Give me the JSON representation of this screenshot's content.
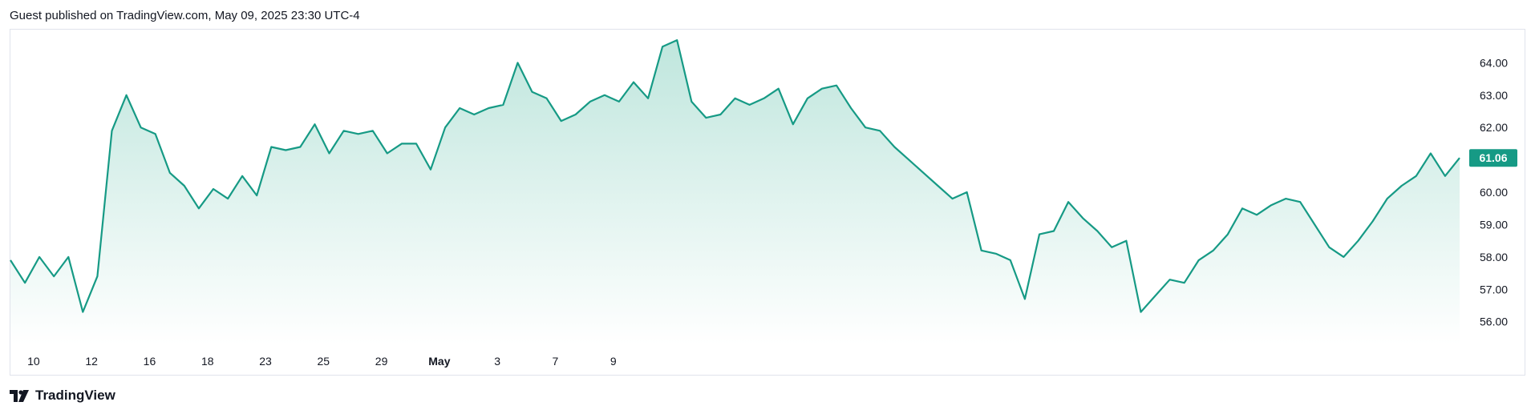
{
  "header": {
    "published_text": "Guest published on TradingView.com, May 09, 2025 23:30 UTC-4"
  },
  "footer": {
    "brand": "TradingView",
    "logo_icon": "tradingview-logo-icon"
  },
  "colors": {
    "line": "#169a85",
    "fill_top": "#bfe6dd",
    "fill_bottom": "#ffffff",
    "badge_bg": "#169a85",
    "badge_text": "#ffffff",
    "axis_text": "#131722",
    "border": "#e0e3eb"
  },
  "chart_data": {
    "type": "area",
    "title": "",
    "xlabel": "",
    "ylabel": "",
    "ylim": [
      55.3,
      64.9
    ],
    "y_ticks": [
      56,
      57,
      58,
      59,
      60,
      61,
      62,
      63,
      64
    ],
    "y_tick_labels": [
      "56.00",
      "57.00",
      "58.00",
      "59.00",
      "60.00",
      "61.00",
      "62.00",
      "63.00",
      "64.00"
    ],
    "x_tick_labels": [
      "10",
      "12",
      "16",
      "18",
      "23",
      "25",
      "29",
      "May",
      "3",
      "7",
      "9"
    ],
    "x_tick_index": [
      1.6,
      5.6,
      9.6,
      13.6,
      17.6,
      21.6,
      25.6,
      29.6,
      33.6,
      37.6,
      41.6
    ],
    "last_value_label": "61.06",
    "grid": false,
    "series": [
      {
        "values": [
          57.9,
          57.2,
          58.0,
          57.4,
          58.0,
          56.3,
          57.4,
          61.9,
          63.0,
          62.0,
          61.8,
          60.6,
          60.2,
          59.5,
          60.1,
          59.8,
          60.5,
          59.9,
          61.4,
          61.3,
          61.4,
          62.1,
          61.2,
          61.9,
          61.8,
          61.9,
          61.2,
          61.5,
          61.5,
          60.7,
          62.0,
          62.6,
          62.4,
          62.6,
          62.7,
          64.0,
          63.1,
          62.9,
          62.2,
          62.4,
          62.8,
          63.0,
          62.8,
          63.4,
          62.9,
          64.5,
          64.7,
          62.8,
          62.3,
          62.4,
          62.9,
          62.7,
          62.9,
          63.2,
          62.1,
          62.9,
          63.2,
          63.3,
          62.6,
          62.0,
          61.9,
          61.4,
          61.0,
          60.6,
          60.2,
          59.8,
          60.0,
          58.2,
          58.1,
          57.9,
          56.7,
          58.7,
          58.8,
          59.7,
          59.2,
          58.8,
          58.3,
          58.5,
          56.3,
          56.8,
          57.3,
          57.2,
          57.9,
          58.2,
          58.7,
          59.5,
          59.3,
          59.6,
          59.8,
          59.7,
          59.0,
          58.3,
          58.0,
          58.5,
          59.1,
          59.8,
          60.2,
          60.5,
          61.2,
          60.5,
          61.06
        ]
      }
    ]
  }
}
